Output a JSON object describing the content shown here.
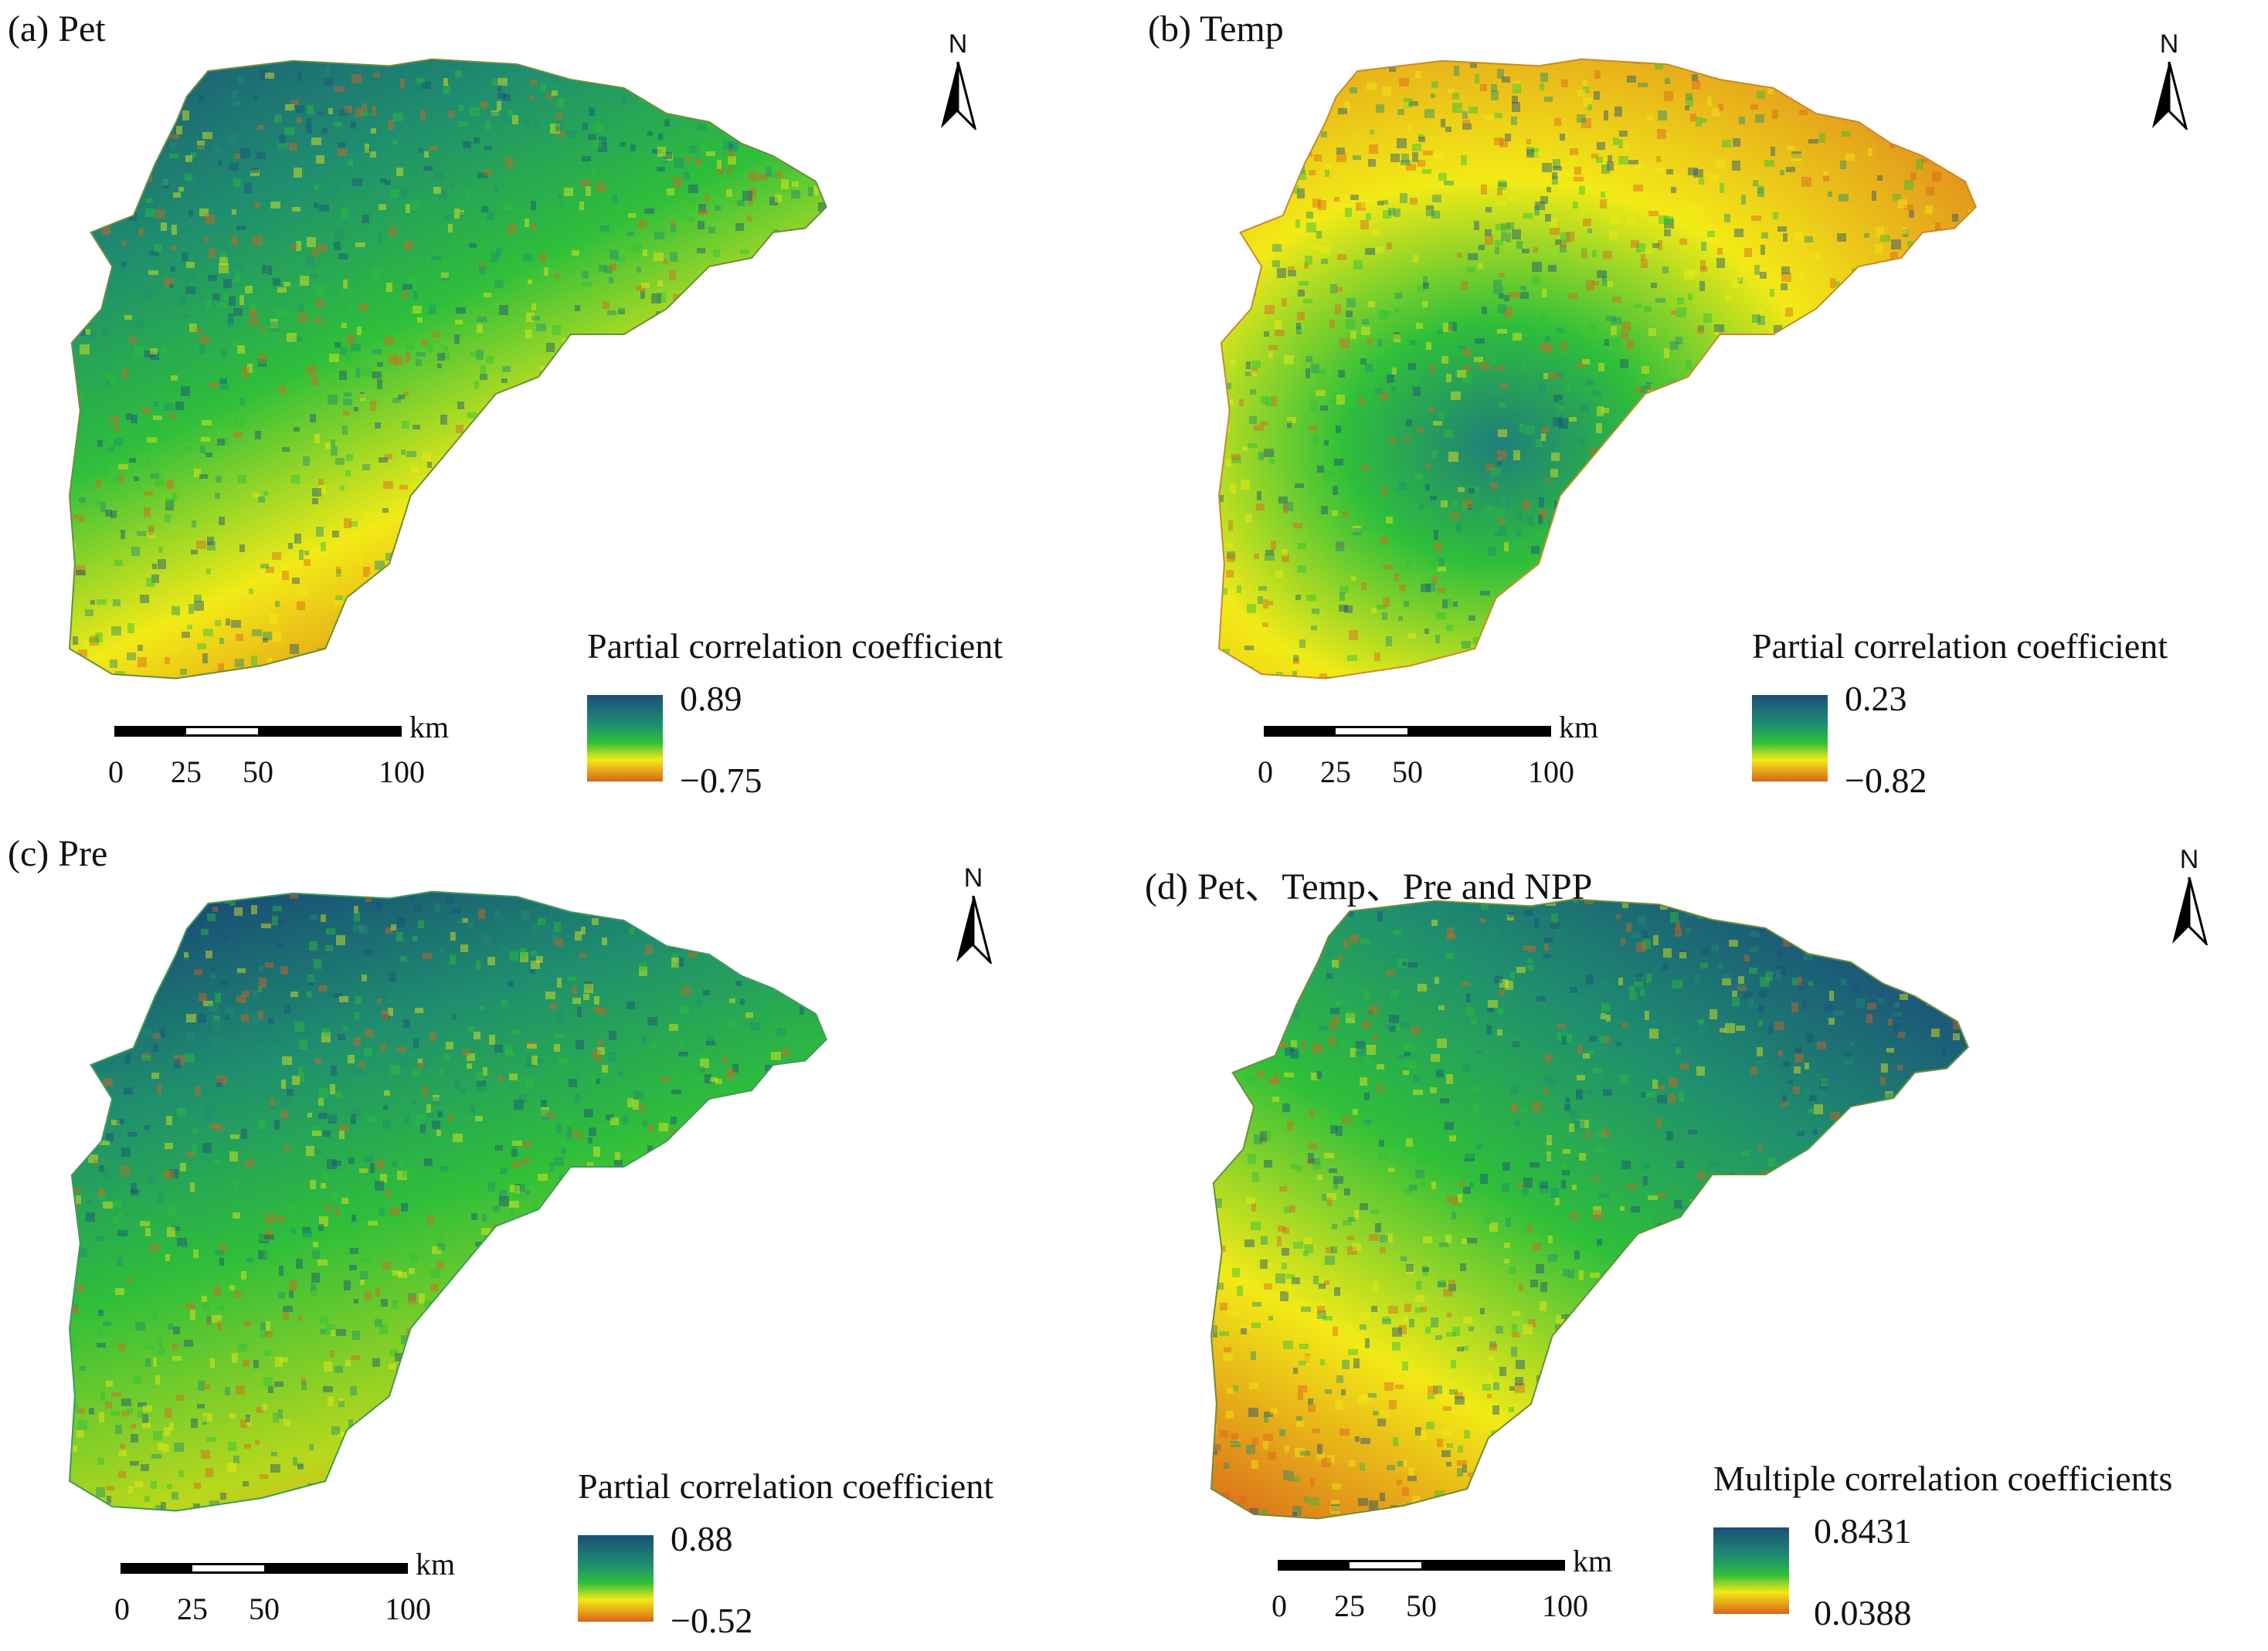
{
  "panels": {
    "a": {
      "title": "(a)  Pet",
      "north": "N",
      "legend_title": "Partial correlation coefficient",
      "legend_max": "0.89",
      "legend_min": "−0.75"
    },
    "b": {
      "title": "(b)  Temp",
      "north": "N",
      "legend_title": "Partial correlation coefficient",
      "legend_max": "0.23",
      "legend_min": "−0.82"
    },
    "c": {
      "title": "(c)  Pre",
      "north": "N",
      "legend_title": "Partial correlation coefficient",
      "legend_max": "0.88",
      "legend_min": "−0.52"
    },
    "d": {
      "title": "(d) Pet、Temp、Pre and NPP",
      "north": "N",
      "legend_title": "Multiple correlation coefficients",
      "legend_max": "0.8431",
      "legend_min": "0.0388"
    }
  },
  "scalebar": {
    "unit": "km",
    "ticks": [
      "0",
      "25",
      "50",
      "100"
    ]
  },
  "colors": {
    "high": "#1b4f7a",
    "upper": "#1f8f6e",
    "mid_green": "#2fbf3a",
    "mid_yellow": "#f2ea16",
    "low": "#d9641c"
  },
  "icons": {
    "north_arrow": "north-arrow-icon"
  }
}
